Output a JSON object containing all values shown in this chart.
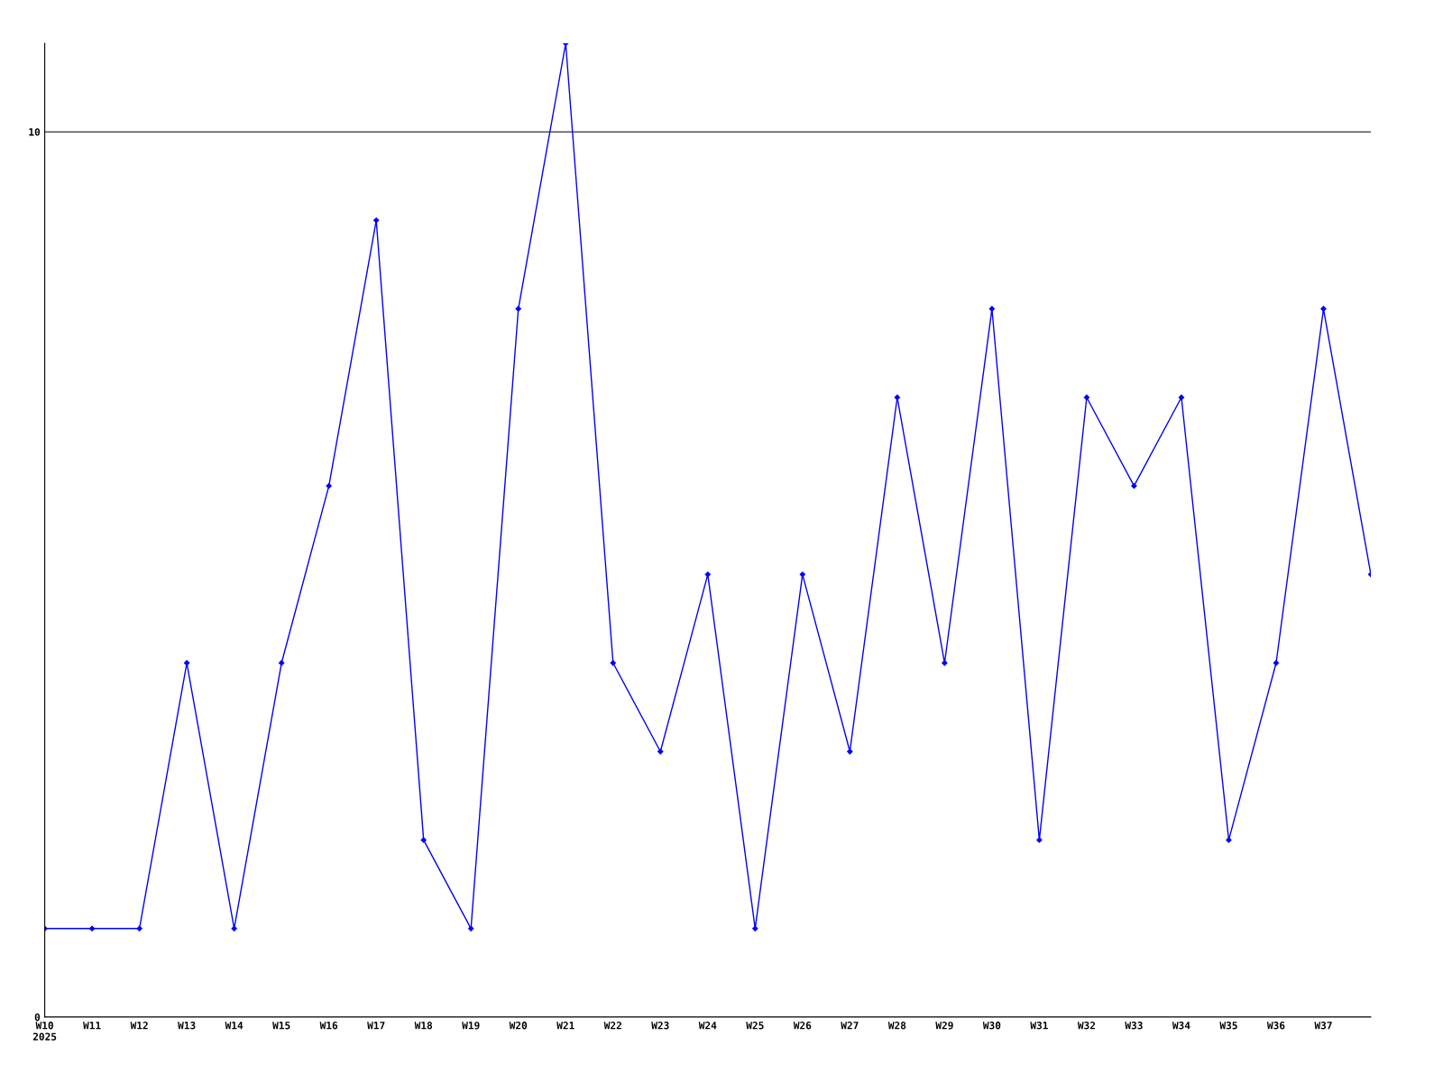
{
  "chart_data": {
    "type": "line",
    "categories": [
      "W10\n2025",
      "W11",
      "W12",
      "W13",
      "W14",
      "W15",
      "W16",
      "W17",
      "W18",
      "W19",
      "W20",
      "W21",
      "W22",
      "W23",
      "W24",
      "W25",
      "W26",
      "W27",
      "W28",
      "W29",
      "W30",
      "W31",
      "W32",
      "W33",
      "W34",
      "W35",
      "W36",
      "W37",
      null
    ],
    "series": [
      {
        "color": "#0000ff",
        "values": [
          1,
          1,
          1,
          4,
          1,
          4,
          6,
          9,
          2,
          1,
          8,
          11,
          4,
          3,
          5,
          1,
          5,
          3,
          7,
          4,
          8,
          2,
          7,
          6,
          7,
          2,
          4,
          8,
          5
        ]
      }
    ],
    "ylim": [
      0,
      11
    ],
    "yticks": [
      0,
      10
    ],
    "grid": "y",
    "marker": "diamond",
    "line_style": "solid"
  }
}
